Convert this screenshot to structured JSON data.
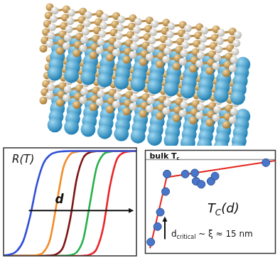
{
  "chart_data": [
    {
      "type": "line",
      "ylabel": "R(T)",
      "tick_labels": false,
      "grid": false,
      "xlim": [
        0,
        100
      ],
      "ylim": [
        0,
        1.03
      ],
      "x": [
        0,
        5,
        10,
        15,
        20,
        25,
        30,
        35,
        40,
        45,
        50,
        55,
        60,
        65,
        70,
        75,
        80,
        85,
        90,
        95,
        100
      ],
      "series": [
        {
          "color": "#2f4fd8",
          "values": [
            0.004,
            0.014,
            0.047,
            0.148,
            0.377,
            0.679,
            0.881,
            0.963,
            0.989,
            0.997,
            1,
            1,
            1,
            1,
            1,
            1,
            1,
            1,
            1,
            1,
            1
          ]
        },
        {
          "color": "#f28c28",
          "values": [
            0,
            0,
            0,
            0,
            0.001,
            0.007,
            0.034,
            0.159,
            0.5,
            0.841,
            0.966,
            0.993,
            1,
            1,
            1,
            1,
            1,
            1,
            1,
            1,
            1
          ]
        },
        {
          "color": "#7f1414",
          "values": [
            0,
            0,
            0,
            0,
            0,
            0,
            0,
            0.003,
            0.018,
            0.088,
            0.34,
            0.731,
            0.935,
            0.987,
            0.998,
            1,
            1,
            1,
            1,
            1,
            1
          ]
        },
        {
          "color": "#27b04a",
          "values": [
            0,
            0,
            0,
            0,
            0,
            0,
            0,
            0,
            0,
            0.001,
            0.007,
            0.034,
            0.159,
            0.5,
            0.841,
            0.966,
            0.993,
            1,
            1,
            1,
            1
          ]
        },
        {
          "color": "#e8262a",
          "values": [
            0,
            0,
            0,
            0,
            0,
            0,
            0,
            0,
            0,
            0,
            0,
            0,
            0.002,
            0.013,
            0.065,
            0.269,
            0.661,
            0.912,
            0.982,
            0.997,
            1
          ]
        }
      ],
      "annotations": [
        {
          "text": "d"
        }
      ]
    },
    {
      "type": "scatter",
      "tick_labels": false,
      "grid": false,
      "xlim": [
        0,
        100
      ],
      "ylim": [
        0,
        100
      ],
      "reference_lines": [
        {
          "y": 91,
          "text": "bulk T",
          "subscript": "c",
          "color": "#9a9a9a"
        }
      ],
      "series": [
        {
          "type": "scatter",
          "marker": "circle",
          "color": "#4a76c9",
          "x": [
            4.2,
            9.4,
            11.5,
            15.6,
            16.7,
            30.7,
            38,
            39,
            43,
            50.5,
            53.6,
            92.7
          ],
          "values": [
            11,
            26,
            40,
            60,
            77,
            77,
            78,
            70,
            67,
            70,
            75,
            88
          ]
        },
        {
          "type": "line",
          "color": "#e3261f",
          "x": [
            3.6,
            17
          ],
          "values": [
            5,
            77
          ]
        },
        {
          "type": "line",
          "color": "#e3261f",
          "x": [
            17,
            100
          ],
          "values": [
            74,
            90
          ]
        }
      ],
      "annotations": [
        {
          "text": "T",
          "subscript": "C",
          "suffix": "(d)"
        },
        {
          "text": "d",
          "subscript": "critical",
          "suffix": " ~ ξ ≈ 15 nm",
          "x": 15
        }
      ]
    }
  ]
}
